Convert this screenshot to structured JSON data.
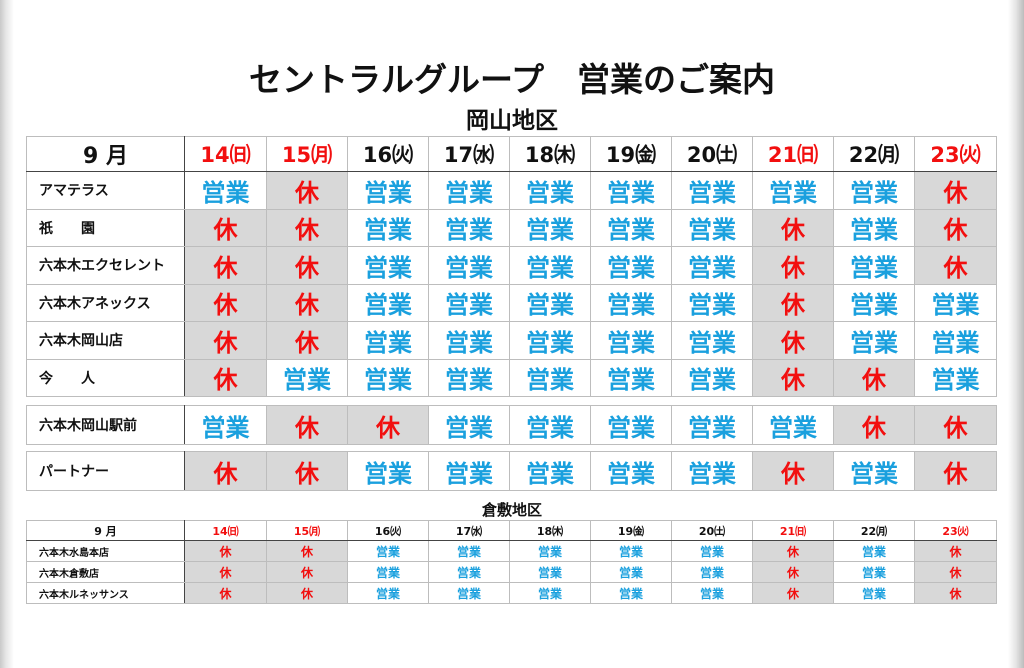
{
  "title": "セントラルグループ　営業のご案内",
  "colors": {
    "open": "#1aa0de",
    "closed": "#f20f0f",
    "closed_bg": "#d8d8d8"
  },
  "okayama": {
    "region": "岡山地区",
    "month": "9 月",
    "days": [
      {
        "label": "14㈰",
        "red": true
      },
      {
        "label": "15㈪",
        "red": true
      },
      {
        "label": "16㈫",
        "red": false
      },
      {
        "label": "17㈬",
        "red": false
      },
      {
        "label": "18㈭",
        "red": false
      },
      {
        "label": "19㈮",
        "red": false
      },
      {
        "label": "20㈯",
        "red": false
      },
      {
        "label": "21㈰",
        "red": true
      },
      {
        "label": "22㈪",
        "red": false
      },
      {
        "label": "23㈫",
        "red": true
      }
    ],
    "stores": [
      {
        "name": "アマテラス",
        "status": [
          "営業",
          "休",
          "営業",
          "営業",
          "営業",
          "営業",
          "営業",
          "営業",
          "営業",
          "休"
        ]
      },
      {
        "name": "祇　　園",
        "status": [
          "休",
          "休",
          "営業",
          "営業",
          "営業",
          "営業",
          "営業",
          "休",
          "営業",
          "休"
        ]
      },
      {
        "name": "六本木エクセレント",
        "status": [
          "休",
          "休",
          "営業",
          "営業",
          "営業",
          "営業",
          "営業",
          "休",
          "営業",
          "休"
        ]
      },
      {
        "name": "六本木アネックス",
        "status": [
          "休",
          "休",
          "営業",
          "営業",
          "営業",
          "営業",
          "営業",
          "休",
          "営業",
          "営業"
        ]
      },
      {
        "name": "六本木岡山店",
        "status": [
          "休",
          "休",
          "営業",
          "営業",
          "営業",
          "営業",
          "営業",
          "休",
          "営業",
          "営業"
        ]
      },
      {
        "name": "今　　人",
        "status": [
          "休",
          "営業",
          "営業",
          "営業",
          "営業",
          "営業",
          "営業",
          "休",
          "休",
          "営業"
        ]
      }
    ],
    "ekimae": {
      "name": "六本木岡山駅前",
      "status": [
        "営業",
        "休",
        "休",
        "営業",
        "営業",
        "営業",
        "営業",
        "営業",
        "休",
        "休"
      ]
    },
    "partner": {
      "name": "パートナー",
      "status": [
        "休",
        "休",
        "営業",
        "営業",
        "営業",
        "営業",
        "営業",
        "休",
        "営業",
        "休"
      ]
    }
  },
  "kurashiki": {
    "region": "倉敷地区",
    "month": "9 月",
    "days": [
      {
        "label": "14㈰",
        "red": true
      },
      {
        "label": "15㈪",
        "red": true
      },
      {
        "label": "16㈫",
        "red": false
      },
      {
        "label": "17㈬",
        "red": false
      },
      {
        "label": "18㈭",
        "red": false
      },
      {
        "label": "19㈮",
        "red": false
      },
      {
        "label": "20㈯",
        "red": false
      },
      {
        "label": "21㈰",
        "red": true
      },
      {
        "label": "22㈪",
        "red": false
      },
      {
        "label": "23㈫",
        "red": true
      }
    ],
    "stores": [
      {
        "name": "六本木水島本店",
        "status": [
          "休",
          "休",
          "営業",
          "営業",
          "営業",
          "営業",
          "営業",
          "休",
          "営業",
          "休"
        ]
      },
      {
        "name": "六本木倉敷店",
        "status": [
          "休",
          "休",
          "営業",
          "営業",
          "営業",
          "営業",
          "営業",
          "休",
          "営業",
          "休"
        ]
      },
      {
        "name": "六本木ルネッサンス",
        "status": [
          "休",
          "休",
          "営業",
          "営業",
          "営業",
          "営業",
          "営業",
          "休",
          "営業",
          "休"
        ]
      }
    ]
  }
}
